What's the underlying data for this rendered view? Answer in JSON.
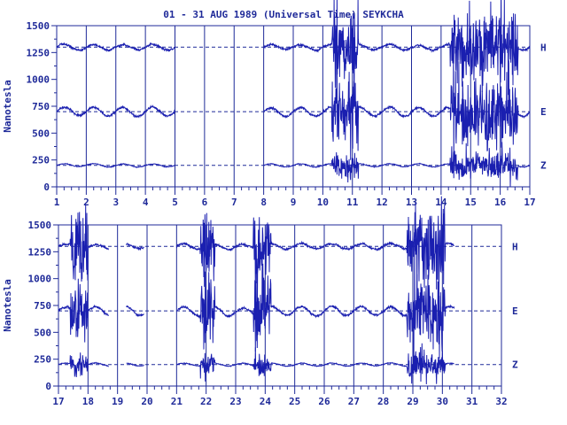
{
  "title": "01 - 31 AUG 1989 (Universal Time) SEYKCHA",
  "colors": {
    "ink": "#1f2a99",
    "trace": "#1a1fb0",
    "background": "#ffffff"
  },
  "chart_data": [
    {
      "type": "line",
      "panel": "days 1-17",
      "ylabel": "Nanotesla",
      "ylim": [
        0,
        1500
      ],
      "yticks": [
        "0",
        "250",
        "500",
        "750",
        "1000",
        "1250",
        "1500"
      ],
      "xlim": [
        1,
        17
      ],
      "xticks": [
        "1",
        "2",
        "3",
        "4",
        "5",
        "6",
        "7",
        "8",
        "9",
        "10",
        "11",
        "12",
        "13",
        "14",
        "15",
        "16",
        "17"
      ],
      "grid": "vertical lines at each day",
      "baselines": [
        {
          "component": "H",
          "value": 1300
        },
        {
          "component": "E",
          "value": 700
        },
        {
          "component": "Z",
          "value": 200
        }
      ],
      "data_segments": [
        [
          1,
          5
        ],
        [
          8,
          17
        ]
      ],
      "disturbed_intervals": [
        [
          10.3,
          11.2
        ],
        [
          14.3,
          16.6
        ]
      ]
    },
    {
      "type": "line",
      "panel": "days 17-32",
      "ylabel": "Nanotesla",
      "ylim": [
        0,
        1500
      ],
      "yticks": [
        "0",
        "250",
        "500",
        "750",
        "1000",
        "1250",
        "1500"
      ],
      "xlim": [
        17,
        32
      ],
      "xticks": [
        "17",
        "18",
        "19",
        "20",
        "21",
        "22",
        "23",
        "24",
        "25",
        "26",
        "27",
        "28",
        "29",
        "30",
        "31",
        "32"
      ],
      "grid": "vertical lines at each day",
      "baselines": [
        {
          "component": "H",
          "value": 1300
        },
        {
          "component": "E",
          "value": 700
        },
        {
          "component": "Z",
          "value": 200
        }
      ],
      "data_segments": [
        [
          17,
          18.7
        ],
        [
          19.3,
          19.9
        ],
        [
          21,
          30.4
        ]
      ],
      "disturbed_intervals": [
        [
          17.4,
          18.0
        ],
        [
          21.8,
          22.3
        ],
        [
          23.6,
          24.2
        ],
        [
          28.8,
          30.1
        ]
      ]
    }
  ]
}
